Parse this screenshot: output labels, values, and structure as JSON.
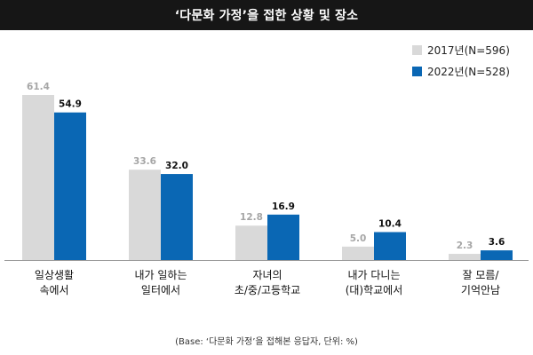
{
  "title": "‘다문화 가정’을 접한 상황 및 장소",
  "footnote": "(Base: ‘다문화 가정’을 접해본 응답자, 단위: %)",
  "colors": {
    "s2017": "#d9d9d9",
    "s2022": "#0a67b4",
    "label2017": "#a6a6a6",
    "label2022": "#111111",
    "title_bg": "#161616",
    "axis": "#9a9a9a"
  },
  "chart_data": {
    "type": "bar",
    "categories": [
      [
        "일상생활",
        "속에서"
      ],
      [
        "내가 일하는",
        "일터에서"
      ],
      [
        "자녀의",
        "초/중/고등학교"
      ],
      [
        "내가 다니는",
        "(대)학교에서"
      ],
      [
        "잘 모름/",
        "기억안남"
      ]
    ],
    "series": [
      {
        "name": "2017년(N=596)",
        "values": [
          61.4,
          33.6,
          12.8,
          5.0,
          2.3
        ],
        "labels": [
          "61.4",
          "33.6",
          "12.8",
          "5.0",
          "2.3"
        ]
      },
      {
        "name": "2022년(N=528)",
        "values": [
          54.9,
          32.0,
          16.9,
          10.4,
          3.6
        ],
        "labels": [
          "54.9",
          "32.0",
          "16.9",
          "10.4",
          "3.6"
        ]
      }
    ],
    "ylim": [
      0,
      61.4
    ],
    "grid": false,
    "legend": "top-right"
  }
}
